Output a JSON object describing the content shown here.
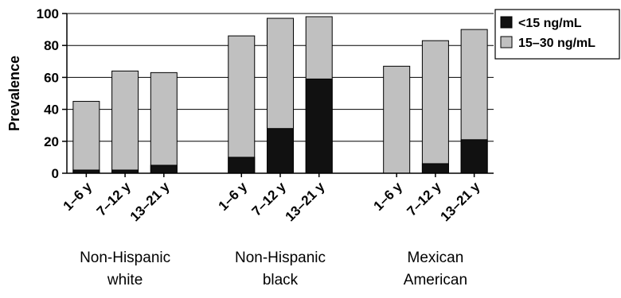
{
  "chart_data": {
    "type": "bar",
    "stacked": true,
    "ylabel": "Prevalence",
    "ylim": [
      0,
      100
    ],
    "yticks": [
      0,
      20,
      40,
      60,
      80,
      100
    ],
    "grid": true,
    "legend_position": "top-right",
    "groups": [
      {
        "label_lines": [
          "Non-Hispanic",
          "white"
        ],
        "categories": [
          "1–6 y",
          "7–12 y",
          "13–21 y"
        ],
        "below15": [
          2,
          2,
          5
        ],
        "total": [
          45,
          64,
          63
        ]
      },
      {
        "label_lines": [
          "Non-Hispanic",
          "black"
        ],
        "categories": [
          "1–6 y",
          "7–12 y",
          "13–21 y"
        ],
        "below15": [
          10,
          28,
          59
        ],
        "total": [
          86,
          97,
          98
        ]
      },
      {
        "label_lines": [
          "Mexican",
          "American"
        ],
        "categories": [
          "1–6 y",
          "7–12 y",
          "13–21 y"
        ],
        "below15": [
          0,
          6,
          21
        ],
        "total": [
          67,
          83,
          90
        ]
      }
    ],
    "series": [
      {
        "name": "<15 ng/mL",
        "color": "#111111"
      },
      {
        "name": "15–30 ng/mL",
        "color": "#c0c0c0"
      }
    ]
  }
}
